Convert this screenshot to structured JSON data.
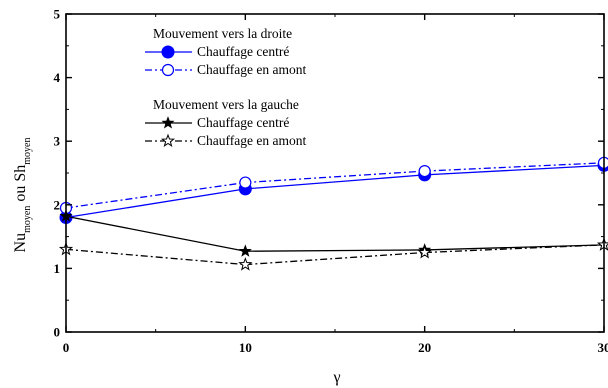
{
  "chart_data": {
    "type": "line",
    "x": [
      0,
      10,
      20,
      30
    ],
    "xlim": [
      0,
      30
    ],
    "ylim": [
      0,
      5
    ],
    "x_ticks": [
      "0",
      "10",
      "20",
      "30"
    ],
    "y_ticks": [
      "0",
      "1",
      "2",
      "3",
      "4",
      "5"
    ],
    "xlabel": "γ",
    "ylabel": {
      "part1": "Nu",
      "part1_sub": "moyen",
      "mid": " ou ",
      "part2": "Sh",
      "part2_sub": "moyen"
    },
    "legend_groups": [
      {
        "title": "Mouvement vers la droite"
      },
      {
        "title": "Mouvement vers la gauche"
      }
    ],
    "series": [
      {
        "name": "Chauffage centré",
        "group": 0,
        "color": "#0000ff",
        "dash": "solid",
        "marker": "filled-circle",
        "values": [
          1.8,
          2.25,
          2.47,
          2.62
        ]
      },
      {
        "name": "Chauffage en amont",
        "group": 0,
        "color": "#0000ff",
        "dash": "dashdot",
        "marker": "open-circle",
        "values": [
          1.95,
          2.35,
          2.53,
          2.66
        ]
      },
      {
        "name": "Chauffage centré",
        "group": 1,
        "color": "#000000",
        "dash": "solid",
        "marker": "filled-star",
        "values": [
          1.82,
          1.27,
          1.29,
          1.37
        ]
      },
      {
        "name": "Chauffage en amont",
        "group": 1,
        "color": "#000000",
        "dash": "dashdot",
        "marker": "open-star",
        "values": [
          1.3,
          1.06,
          1.25,
          1.37
        ]
      }
    ]
  }
}
